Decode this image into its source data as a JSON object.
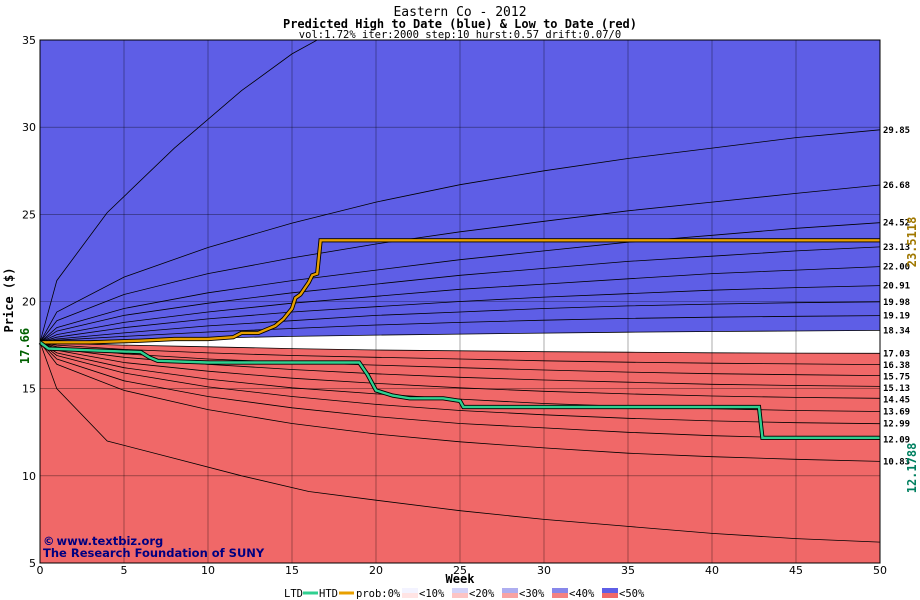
{
  "chart_data": {
    "type": "area",
    "title": "Eastern Co - 2012",
    "subtitle": "Predicted High to Date (blue) &  Low to Date (red)",
    "params": "vol:1.72% iter:2000 step:10 hurst:0.57 drift:0.07/0",
    "xlabel": "Week",
    "ylabel": "Price ($)",
    "xlim": [
      0,
      50
    ],
    "ylim": [
      5,
      35
    ],
    "xticks": [
      0,
      5,
      10,
      15,
      20,
      25,
      30,
      35,
      40,
      45,
      50
    ],
    "yticks": [
      5,
      10,
      15,
      20,
      25,
      30,
      35
    ],
    "grid": true,
    "start_price": 17.66,
    "start_price_label": "17.66",
    "right_labels": [
      "29.85",
      "26.68",
      "24.52",
      "23.13",
      "22.00",
      "20.91",
      "19.98",
      "19.19",
      "18.34",
      "17.03",
      "16.38",
      "15.75",
      "15.13",
      "14.45",
      "13.69",
      "12.99",
      "12.09",
      "10.83"
    ],
    "high_curves": [
      {
        "x": [
          0,
          1,
          4,
          8,
          12,
          15,
          16.5,
          17,
          50
        ],
        "y": [
          17.66,
          21.2,
          25.1,
          28.8,
          32.1,
          34.2,
          35,
          35,
          35
        ]
      },
      {
        "x": [
          0,
          1,
          5,
          10,
          15,
          20,
          25,
          30,
          35,
          40,
          45,
          50
        ],
        "y": [
          17.66,
          19.4,
          21.4,
          23.1,
          24.5,
          25.7,
          26.7,
          27.5,
          28.2,
          28.8,
          29.4,
          29.85
        ]
      },
      {
        "x": [
          0,
          1,
          5,
          10,
          15,
          20,
          25,
          30,
          35,
          40,
          45,
          50
        ],
        "y": [
          17.66,
          18.9,
          20.4,
          21.6,
          22.5,
          23.3,
          24.0,
          24.6,
          25.2,
          25.7,
          26.2,
          26.68
        ]
      },
      {
        "x": [
          0,
          1,
          5,
          10,
          15,
          20,
          25,
          30,
          35,
          40,
          45,
          50
        ],
        "y": [
          17.66,
          18.5,
          19.6,
          20.5,
          21.2,
          21.8,
          22.4,
          22.9,
          23.4,
          23.8,
          24.2,
          24.52
        ]
      },
      {
        "x": [
          0,
          1,
          5,
          10,
          15,
          20,
          25,
          30,
          35,
          40,
          45,
          50
        ],
        "y": [
          17.66,
          18.3,
          19.2,
          19.9,
          20.5,
          21.0,
          21.5,
          21.9,
          22.3,
          22.6,
          22.9,
          23.13
        ]
      },
      {
        "x": [
          0,
          1,
          5,
          10,
          15,
          20,
          25,
          30,
          35,
          40,
          45,
          50
        ],
        "y": [
          17.66,
          18.1,
          18.8,
          19.4,
          19.9,
          20.3,
          20.7,
          21.0,
          21.3,
          21.6,
          21.8,
          22.0
        ]
      },
      {
        "x": [
          0,
          1,
          5,
          10,
          15,
          20,
          25,
          30,
          35,
          40,
          45,
          50
        ],
        "y": [
          17.66,
          17.95,
          18.5,
          19.0,
          19.4,
          19.7,
          20.0,
          20.25,
          20.45,
          20.65,
          20.8,
          20.91
        ]
      },
      {
        "x": [
          0,
          1,
          5,
          10,
          15,
          20,
          25,
          30,
          35,
          40,
          45,
          50
        ],
        "y": [
          17.66,
          17.85,
          18.2,
          18.6,
          18.9,
          19.2,
          19.4,
          19.6,
          19.75,
          19.85,
          19.93,
          19.98
        ]
      },
      {
        "x": [
          0,
          1,
          5,
          10,
          15,
          20,
          25,
          30,
          35,
          40,
          45,
          50
        ],
        "y": [
          17.66,
          17.78,
          18.0,
          18.25,
          18.45,
          18.65,
          18.8,
          18.93,
          19.03,
          19.1,
          19.15,
          19.19
        ]
      },
      {
        "x": [
          0,
          1,
          5,
          10,
          15,
          20,
          25,
          30,
          35,
          40,
          45,
          50
        ],
        "y": [
          17.66,
          17.7,
          17.8,
          17.9,
          18.0,
          18.07,
          18.13,
          18.19,
          18.24,
          18.28,
          18.31,
          18.34
        ]
      }
    ],
    "low_curves": [
      {
        "x": [
          0,
          1,
          5,
          10,
          15,
          20,
          25,
          30,
          35,
          40,
          45,
          50
        ],
        "y": [
          17.66,
          17.6,
          17.5,
          17.4,
          17.3,
          17.22,
          17.17,
          17.12,
          17.09,
          17.06,
          17.04,
          17.03
        ]
      },
      {
        "x": [
          0,
          1,
          5,
          10,
          15,
          20,
          25,
          30,
          35,
          40,
          45,
          50
        ],
        "y": [
          17.66,
          17.5,
          17.25,
          17.05,
          16.9,
          16.8,
          16.7,
          16.6,
          16.52,
          16.46,
          16.42,
          16.38
        ]
      },
      {
        "x": [
          0,
          1,
          5,
          10,
          15,
          20,
          25,
          30,
          35,
          40,
          45,
          50
        ],
        "y": [
          17.66,
          17.4,
          17.0,
          16.7,
          16.5,
          16.35,
          16.2,
          16.07,
          15.95,
          15.86,
          15.8,
          15.75
        ]
      },
      {
        "x": [
          0,
          1,
          5,
          10,
          15,
          20,
          25,
          30,
          35,
          40,
          45,
          50
        ],
        "y": [
          17.66,
          17.3,
          16.8,
          16.4,
          16.1,
          15.85,
          15.65,
          15.5,
          15.37,
          15.25,
          15.18,
          15.13
        ]
      },
      {
        "x": [
          0,
          1,
          5,
          10,
          15,
          20,
          25,
          30,
          35,
          40,
          45,
          50
        ],
        "y": [
          17.66,
          17.2,
          16.5,
          16.0,
          15.6,
          15.3,
          15.05,
          14.85,
          14.7,
          14.58,
          14.5,
          14.45
        ]
      },
      {
        "x": [
          0,
          1,
          5,
          10,
          15,
          20,
          25,
          30,
          35,
          40,
          45,
          50
        ],
        "y": [
          17.66,
          17.05,
          16.2,
          15.55,
          15.05,
          14.7,
          14.4,
          14.15,
          13.98,
          13.85,
          13.75,
          13.69
        ]
      },
      {
        "x": [
          0,
          1,
          5,
          10,
          15,
          20,
          25,
          30,
          35,
          40,
          45,
          50
        ],
        "y": [
          17.66,
          16.9,
          15.9,
          15.1,
          14.55,
          14.1,
          13.75,
          13.5,
          13.3,
          13.15,
          13.05,
          12.99
        ]
      },
      {
        "x": [
          0,
          1,
          5,
          10,
          15,
          20,
          25,
          30,
          35,
          40,
          45,
          50
        ],
        "y": [
          17.66,
          16.7,
          15.45,
          14.55,
          13.9,
          13.4,
          13.0,
          12.75,
          12.5,
          12.3,
          12.18,
          12.09
        ]
      },
      {
        "x": [
          0,
          1,
          5,
          10,
          15,
          20,
          25,
          30,
          35,
          40,
          45,
          50
        ],
        "y": [
          17.66,
          16.4,
          14.9,
          13.8,
          13.0,
          12.4,
          11.95,
          11.6,
          11.3,
          11.1,
          10.95,
          10.83
        ]
      },
      {
        "x": [
          0,
          1,
          4,
          8,
          12,
          16,
          20,
          25,
          30,
          35,
          40,
          45,
          50
        ],
        "y": [
          17.66,
          15.0,
          12.0,
          11.0,
          10.0,
          9.1,
          8.6,
          8.0,
          7.5,
          7.1,
          6.7,
          6.4,
          6.2
        ]
      }
    ],
    "high_fill_colors": [
      "#f3f3ff",
      "#e4e4fc",
      "#d2d2f8",
      "#c2c2f4",
      "#aeaef0",
      "#9a9aec",
      "#8787ea",
      "#7474e8",
      "#6a6ae8",
      "#5e5ee6"
    ],
    "low_fill_colors": [
      "#fff2f2",
      "#ffe4e4",
      "#fdd4d4",
      "#fcc4c4",
      "#fab3b3",
      "#f8a3a3",
      "#f69292",
      "#f48282",
      "#f27474",
      "#f06868"
    ],
    "series": [
      {
        "name": "HTD",
        "color": "#e8a000",
        "x": [
          0,
          3,
          6,
          8,
          10,
          11.5,
          12,
          13,
          13.5,
          14,
          14.5,
          15,
          15.2,
          15.5,
          16,
          16.2,
          16.5,
          16.7,
          50
        ],
        "y": [
          17.66,
          17.66,
          17.75,
          17.85,
          17.85,
          17.95,
          18.2,
          18.2,
          18.4,
          18.6,
          19.0,
          19.6,
          20.2,
          20.4,
          21.1,
          21.5,
          21.6,
          23.51,
          23.51
        ]
      },
      {
        "name": "LTD",
        "color": "#30d090",
        "x": [
          0,
          0.5,
          3,
          6,
          6.5,
          7,
          10,
          19,
          19.5,
          20,
          21,
          22,
          24,
          25,
          25.2,
          42.8,
          43,
          50
        ],
        "y": [
          17.66,
          17.3,
          17.2,
          17.1,
          16.8,
          16.6,
          16.5,
          16.5,
          15.8,
          14.9,
          14.6,
          14.45,
          14.45,
          14.3,
          13.95,
          13.95,
          12.18,
          12.18
        ]
      }
    ],
    "end_labels": {
      "high": "23.5118",
      "low": "12.1788"
    },
    "end_colors": {
      "high": "#a07800",
      "low": "#008060"
    }
  },
  "credit": {
    "line1": "www.textbiz.org",
    "line2": "The Research Foundation of SUNY",
    "copyright_symbol": "©"
  },
  "legend": {
    "ltd": "LTD",
    "htd": "HTD",
    "prob": "prob:0%",
    "items": [
      "<10%",
      "<20%",
      "<30%",
      "<40%",
      "<50%"
    ],
    "ltd_color": "#30d090",
    "htd_color": "#e8a000",
    "item_colors_high": [
      "#f3f3ff",
      "#d2d2f8",
      "#aeaef0",
      "#8787ea",
      "#5e5ee6"
    ],
    "item_colors_low": [
      "#ffe4e4",
      "#fcc4c4",
      "#f8a3a3",
      "#f48282",
      "#f06868"
    ]
  }
}
